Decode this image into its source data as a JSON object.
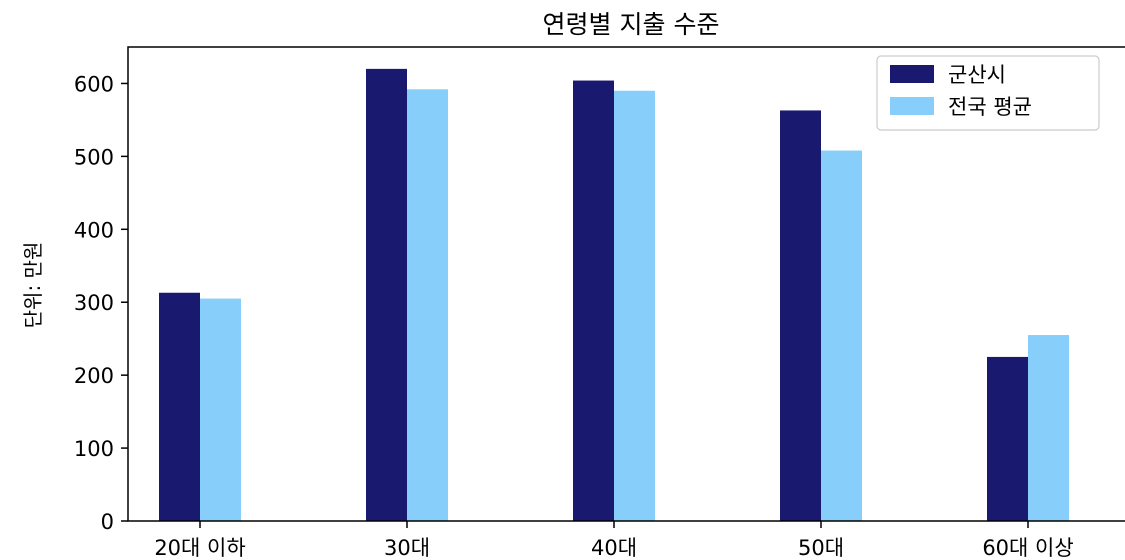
{
  "chart_data": {
    "type": "bar",
    "title": "연령별 지출 수준",
    "xlabel": "",
    "ylabel": "단위: 만원",
    "categories": [
      "20대 이하",
      "30대",
      "40대",
      "50대",
      "60대 이상"
    ],
    "series": [
      {
        "name": "군산시",
        "color": "#191970",
        "values": [
          313,
          620,
          604,
          563,
          225
        ]
      },
      {
        "name": "전국 평균",
        "color": "#87CEFA",
        "values": [
          305,
          592,
          590,
          508,
          255
        ]
      }
    ],
    "ylim": [
      0,
      650
    ],
    "yticks": [
      0,
      100,
      200,
      300,
      400,
      500,
      600
    ],
    "grid": false,
    "legend_position": "top-right"
  }
}
